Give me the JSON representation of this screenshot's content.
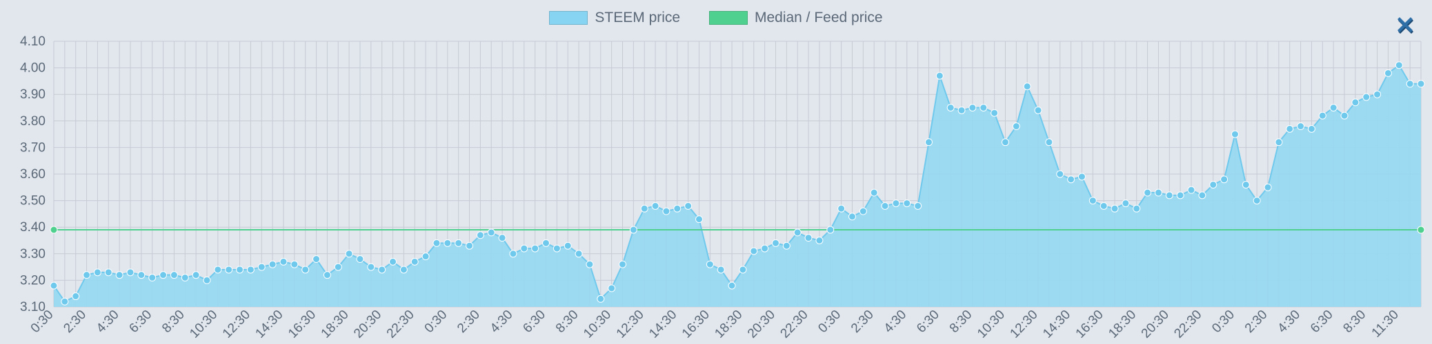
{
  "legend": {
    "steem_label": "STEEM price",
    "median_label": "Median / Feed price",
    "steem_color": "#87d3f2",
    "median_color": "#4fd08f"
  },
  "close_icon": {
    "name": "close-icon",
    "color": "#2f6fa8",
    "shadow": "#1a4770"
  },
  "chart": {
    "type": "area",
    "background_color": "#e2e6ed",
    "grid_color": "#c6cbd4",
    "axis_font_size": 19,
    "axis_font_color": "#5a6877",
    "y": {
      "min": 3.1,
      "max": 4.1,
      "tick_step": 0.1,
      "ticks": [
        "3.10",
        "3.20",
        "3.30",
        "3.40",
        "3.50",
        "3.60",
        "3.70",
        "3.80",
        "3.90",
        "4.00",
        "4.10"
      ]
    },
    "x_labels": [
      "0:30",
      "2:30",
      "4:30",
      "6:30",
      "8:30",
      "10:30",
      "12:30",
      "14:30",
      "16:30",
      "18:30",
      "20:30",
      "22:30",
      "0:30",
      "2:30",
      "4:30",
      "6:30",
      "8:30",
      "10:30",
      "12:30",
      "14:30",
      "16:30",
      "18:30",
      "20:30",
      "22:30",
      "0:30",
      "2:30",
      "4:30",
      "6:30",
      "8:30",
      "10:30",
      "12:30",
      "14:30",
      "16:30",
      "18:30",
      "20:30",
      "22:30",
      "0:30",
      "2:30",
      "4:30",
      "6:30",
      "8:30",
      "11:30"
    ],
    "series": {
      "steem": {
        "fill_color": "#95d8f2",
        "stroke_color": "#6fc9ed",
        "marker_color": "#6fc9ed",
        "marker_radius": 5,
        "line_width": 2,
        "values": [
          3.18,
          3.12,
          3.14,
          3.22,
          3.23,
          3.23,
          3.22,
          3.23,
          3.22,
          3.21,
          3.22,
          3.22,
          3.21,
          3.22,
          3.2,
          3.24,
          3.24,
          3.24,
          3.24,
          3.25,
          3.26,
          3.27,
          3.26,
          3.24,
          3.28,
          3.22,
          3.25,
          3.3,
          3.28,
          3.25,
          3.24,
          3.27,
          3.24,
          3.27,
          3.29,
          3.34,
          3.34,
          3.34,
          3.33,
          3.37,
          3.38,
          3.36,
          3.3,
          3.32,
          3.32,
          3.34,
          3.32,
          3.33,
          3.3,
          3.26,
          3.13,
          3.17,
          3.26,
          3.39,
          3.47,
          3.48,
          3.46,
          3.47,
          3.48,
          3.43,
          3.26,
          3.24,
          3.18,
          3.24,
          3.31,
          3.32,
          3.34,
          3.33,
          3.38,
          3.36,
          3.35,
          3.39,
          3.47,
          3.44,
          3.46,
          3.53,
          3.48,
          3.49,
          3.49,
          3.48,
          3.72,
          3.97,
          3.85,
          3.84,
          3.85,
          3.85,
          3.83,
          3.72,
          3.78,
          3.93,
          3.84,
          3.72,
          3.6,
          3.58,
          3.59,
          3.5,
          3.48,
          3.47,
          3.49,
          3.47,
          3.53,
          3.53,
          3.52,
          3.52,
          3.54,
          3.52,
          3.56,
          3.58,
          3.75,
          3.56,
          3.5,
          3.55,
          3.72,
          3.77,
          3.78,
          3.77,
          3.82,
          3.85,
          3.82,
          3.87,
          3.89,
          3.9,
          3.98,
          4.01,
          3.94,
          3.94
        ]
      },
      "median": {
        "stroke_color": "#4fd08f",
        "marker_color": "#4fd08f",
        "line_width": 2,
        "value": 3.39
      }
    }
  }
}
